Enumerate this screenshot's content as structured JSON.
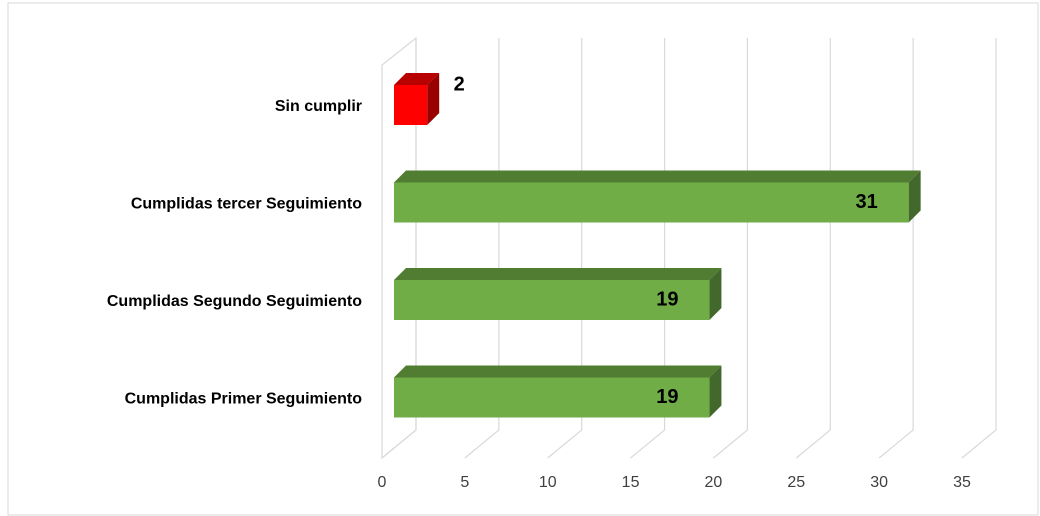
{
  "chart_data": {
    "type": "bar",
    "orientation": "horizontal",
    "categories": [
      "Cumplidas Primer Seguimiento",
      "Cumplidas Segundo Seguimiento",
      "Cumplidas tercer Seguimiento",
      "Sin cumplir"
    ],
    "values": [
      19,
      19,
      31,
      2
    ],
    "colors": [
      "#70ad47",
      "#70ad47",
      "#70ad47",
      "#ff0000"
    ],
    "xlim": [
      0,
      35
    ],
    "xticks": [
      0,
      5,
      10,
      15,
      20,
      25,
      30,
      35
    ],
    "grid": true
  }
}
